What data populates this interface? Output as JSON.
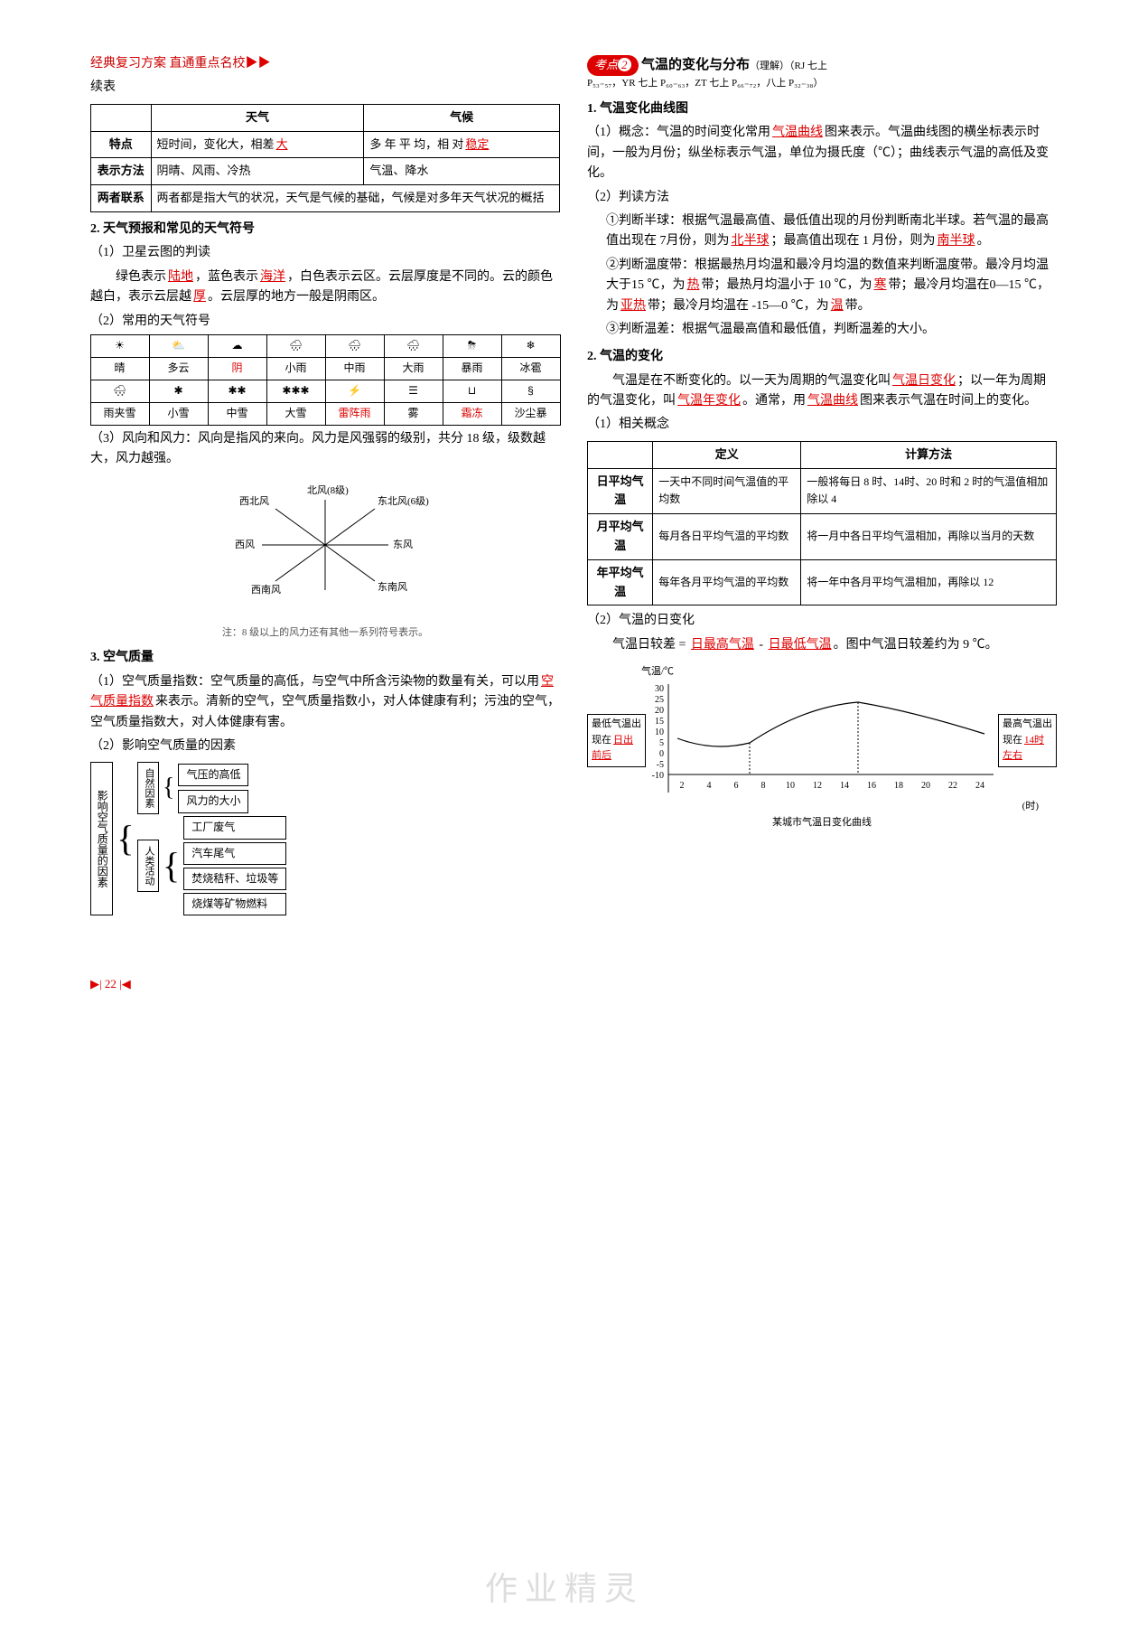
{
  "header": {
    "line": "经典复习方案  直通重点名校",
    "arrow": "▶▶"
  },
  "left": {
    "xubiao": "续表",
    "table1": {
      "h1": "天气",
      "h2": "气候",
      "r1": {
        "label": "特点",
        "c1a": "短时间，变化大，相差",
        "c1b": "大",
        "c2a": "多 年 平 均，相 对",
        "c2b": "稳定"
      },
      "r2": {
        "label": "表示方法",
        "c1": "阴晴、风雨、冷热",
        "c2": "气温、降水"
      },
      "r3": {
        "label": "两者联系",
        "c": "两者都是指大气的状况，天气是气候的基础，气候是对多年天气状况的概括"
      }
    },
    "s2": "2. 天气预报和常见的天气符号",
    "s2_1": {
      "label": "（1）卫星云图的判读",
      "t1": "绿色表示",
      "b1": "陆地",
      "t2": "，蓝色表示",
      "b2": "海洋",
      "t3": "，白色表示云区。云层厚度是不同的。云的颜色越白，表示云层越",
      "b3": "厚",
      "t4": "。云层厚的地方一般是阴雨区。"
    },
    "s2_2": "（2）常用的天气符号",
    "weather": {
      "sym": [
        "☀",
        "⛅",
        "☁",
        "🌧",
        "🌧",
        "🌧",
        "⛈",
        "❄"
      ],
      "lab": [
        "晴",
        "多云",
        "阴",
        "小雨",
        "中雨",
        "大雨",
        "暴雨",
        "冰雹"
      ],
      "sym2": [
        "🌨",
        "✱",
        "✱✱",
        "✱✱✱",
        "⚡",
        "☰",
        "⊔",
        "§"
      ],
      "lab2": [
        "雨夹雪",
        "小雪",
        "中雪",
        "大雪",
        "雷阵雨",
        "雾",
        "霜冻",
        "沙尘暴"
      ],
      "pink": [
        2,
        4,
        6
      ]
    },
    "s2_3": "（3）风向和风力：风向是指风的来向。风力是风强弱的级别，共分 18 级，级数越大，风力越强。",
    "wind": {
      "n": "北风(8级)",
      "ne": "东北风(6级)",
      "e": "东风",
      "se": "东南风",
      "s": "",
      "sw": "西南风",
      "w": "西风",
      "nw": "西北风"
    },
    "wind_note": "注：8 级以上的风力还有其他一系列符号表示。",
    "s3": "3. 空气质量",
    "s3_1": {
      "l": "（1）空气质量指数：空气质量的高低，与空气中所含污染物的数量有关，可以用",
      "b": "空气质量指数",
      "t": "来表示。清新的空气，空气质量指数小，对人体健康有利；污浊的空气，空气质量指数大，对人体健康有害。"
    },
    "s3_2": "（2）影响空气质量的因素",
    "factors": {
      "main": "影响空气质量的因素",
      "g1": {
        "label": "自然因素",
        "items": [
          "气压的高低",
          "风力的大小"
        ]
      },
      "g2": {
        "label": "人类活动",
        "items": [
          "工厂废气",
          "汽车尾气",
          "焚烧秸秆、垃圾等",
          "烧煤等矿物燃料"
        ]
      }
    }
  },
  "right": {
    "kaodian": {
      "tag": "考点",
      "num": "2",
      "title": "气温的变化与分布",
      "note": "（理解）（RJ 七上",
      "refs": "P₅₃₋₅₇，YR 七上 P₆₀₋₆₃，ZT 七上 P₆₆₋₇₂，八上 P₃₂₋₃₈）"
    },
    "s1": "1. 气温变化曲线图",
    "s1_1": {
      "l": "（1）概念：气温的时间变化常用",
      "b": "气温曲线",
      "t": "图来表示。气温曲线图的横坐标表示时间，一般为月份；纵坐标表示气温，单位为摄氏度（℃）；曲线表示气温的高低及变化。"
    },
    "s1_2": "（2）判读方法",
    "m1": {
      "l": "①判断半球：根据气温最高值、最低值出现的月份判断南北半球。若气温的最高值出现在 7月份，则为",
      "b1": "北半球",
      "t1": "；最高值出现在 1 月份，则为",
      "b2": "南半球",
      "t2": "。"
    },
    "m2": {
      "l": "②判断温度带：根据最热月均温和最冷月均温的数值来判断温度带。最冷月均温大于15 ℃，为",
      "b1": "热",
      "t1": "带；最热月均温小于 10 ℃，为",
      "b2": "寒",
      "t2": "带；最冷月均温在0—15 ℃，为",
      "b3": "亚热",
      "t3": "带；最冷月均温在 -15—0 ℃，为",
      "b4": "温",
      "t4": "带。"
    },
    "m3": "③判断温差：根据气温最高值和最低值，判断温差的大小。",
    "s2": "2. 气温的变化",
    "s2p": {
      "l": "气温是在不断变化的。以一天为周期的气温变化叫",
      "b1": "气温日变化",
      "t1": "；以一年为周期的气温变化，叫",
      "b2": "气温年变化",
      "t2": "。通常，用",
      "b3": "气温曲线",
      "t3": "图来表示气温在时间上的变化。"
    },
    "s2_1": "（1）相关概念",
    "deftable": {
      "h1": "定义",
      "h2": "计算方法",
      "r1": {
        "l": "日平均气温",
        "d": "一天中不同时间气温值的平均数",
        "c": "一般将每日 8 时、14时、20 时和 2 时的气温值相加除以 4"
      },
      "r2": {
        "l": "月平均气温",
        "d": "每月各日平均气温的平均数",
        "c": "将一月中各日平均气温相加，再除以当月的天数"
      },
      "r3": {
        "l": "年平均气温",
        "d": "每年各月平均气温的平均数",
        "c": "将一年中各月平均气温相加，再除以 12"
      }
    },
    "s2_2": "（2）气温的日变化",
    "s2_2p": {
      "l": "气温日较差 = ",
      "b1": "日最高气温",
      "t1": " - ",
      "b2": "日最低气温",
      "t2": "。图中气温日较差约为 9 ℃。"
    },
    "chart": {
      "ylabel": "气温/℃",
      "yvals": [
        30,
        25,
        20,
        15,
        10,
        5,
        0,
        -5,
        -10
      ],
      "xvals": [
        "2",
        "4",
        "6",
        "8",
        "10",
        "12",
        "14",
        "16",
        "18",
        "20",
        "22",
        "24"
      ],
      "xunit": "(时)",
      "left_box": {
        "t": "最低气温出现在",
        "b": "日出前后"
      },
      "right_box": {
        "t": "最高气温出现在",
        "b": "14时左右"
      },
      "caption": "某城市气温日变化曲线"
    }
  },
  "watermark": "作业精灵",
  "pagenum": "22"
}
